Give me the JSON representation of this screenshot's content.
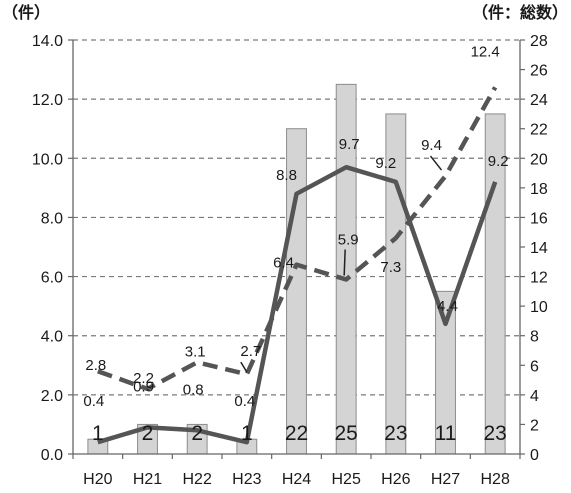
{
  "chart_data": {
    "type": "bar",
    "left_axis_unit": "（件）",
    "right_axis_unit": "（件：総数）",
    "categories": [
      "H20",
      "H21",
      "H22",
      "H23",
      "H24",
      "H25",
      "H26",
      "H27",
      "H28"
    ],
    "ylim_left": [
      0,
      14
    ],
    "ylim_right": [
      0,
      28
    ],
    "left_ticks": [
      "0.0",
      "2.0",
      "4.0",
      "6.0",
      "8.0",
      "10.0",
      "12.0",
      "14.0"
    ],
    "right_ticks": [
      "0",
      "2",
      "4",
      "6",
      "8",
      "10",
      "12",
      "14",
      "16",
      "18",
      "20",
      "22",
      "24",
      "26",
      "28"
    ],
    "grid": true,
    "series": [
      {
        "style": "bar",
        "axis": "right",
        "values": [
          1,
          2,
          2,
          1,
          22,
          25,
          23,
          11,
          23
        ],
        "labels": [
          "1",
          "2",
          "2",
          "1",
          "22",
          "25",
          "23",
          "11",
          "23"
        ]
      },
      {
        "style": "solid-line",
        "axis": "left",
        "values": [
          0.4,
          0.9,
          0.8,
          0.4,
          8.8,
          9.7,
          9.2,
          4.4,
          9.2
        ],
        "labels": [
          "0.4",
          "0.9",
          "0.8",
          "0.4",
          "8.8",
          "9.7",
          "9.2",
          "4.4",
          "9.2"
        ]
      },
      {
        "style": "dashed-line",
        "axis": "left",
        "values": [
          2.8,
          2.2,
          3.1,
          2.7,
          6.4,
          5.9,
          7.3,
          9.4,
          12.4
        ],
        "labels": [
          "2.8",
          "2.2",
          "3.1",
          "2.7",
          "6.4",
          "5.9",
          "7.3",
          "9.4",
          "12.4"
        ]
      }
    ],
    "colors": {
      "bar_fill": "#d4d4d4",
      "bar_stroke": "#8c8c8c",
      "line": "#555555",
      "grid": "#7a7a7a",
      "axis": "#666666"
    }
  }
}
